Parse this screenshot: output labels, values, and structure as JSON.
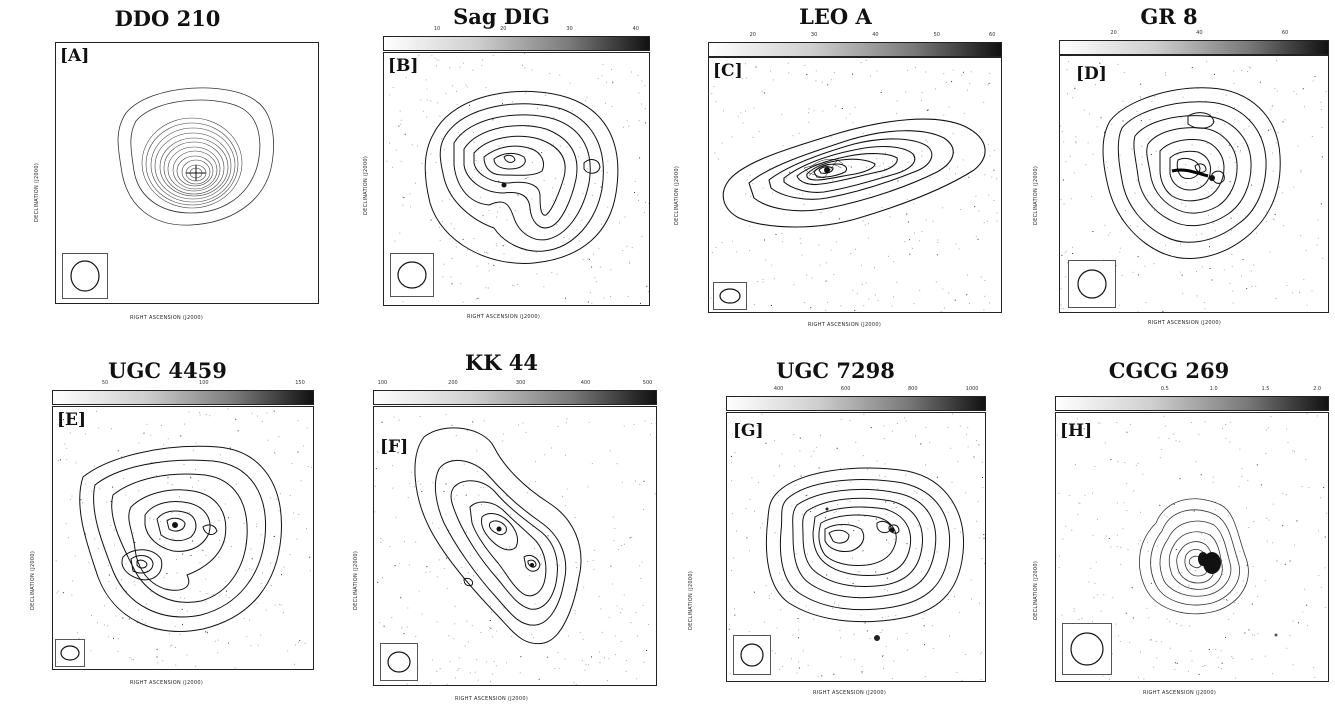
{
  "panels": [
    {
      "title": "DDO 210",
      "label": "[A]",
      "xlabel": "RIGHT ASCENSION (J2000)",
      "ylabel": "DECLINATION (J2000)",
      "colorbar": false,
      "colorbar_ticks": []
    },
    {
      "title": "Sag DIG",
      "label": "[B]",
      "xlabel": "RIGHT ASCENSION (J2000)",
      "ylabel": "DECLINATION (J2000)",
      "colorbar": true,
      "colorbar_ticks": [
        "10",
        "20",
        "30",
        "40"
      ]
    },
    {
      "title": "LEO A",
      "label": "[C]",
      "xlabel": "RIGHT ASCENSION (J2000)",
      "ylabel": "DECLINATION (J2000)",
      "colorbar": true,
      "colorbar_ticks": [
        "20",
        "30",
        "40",
        "50",
        "60"
      ]
    },
    {
      "title": "GR 8",
      "label": "[D]",
      "xlabel": "RIGHT ASCENSION (J2000)",
      "ylabel": "DECLINATION (J2000)",
      "colorbar": true,
      "colorbar_ticks": [
        "20",
        "40",
        "60"
      ]
    },
    {
      "title": "UGC 4459",
      "label": "[E]",
      "xlabel": "RIGHT ASCENSION (J2000)",
      "ylabel": "DECLINATION (J2000)",
      "colorbar": true,
      "colorbar_ticks": [
        "50",
        "100",
        "150"
      ]
    },
    {
      "title": "KK 44",
      "label": "[F]",
      "xlabel": "RIGHT ASCENSION (J2000)",
      "ylabel": "DECLINATION (J2000)",
      "colorbar": true,
      "colorbar_ticks": [
        "100",
        "200",
        "300",
        "400",
        "500"
      ]
    },
    {
      "title": "UGC 7298",
      "label": "[G]",
      "xlabel": "RIGHT ASCENSION (J2000)",
      "ylabel": "DECLINATION (J2000)",
      "colorbar": true,
      "colorbar_ticks": [
        "400",
        "600",
        "800",
        "1000"
      ]
    },
    {
      "title": "CGCG 269",
      "label": "[H]",
      "xlabel": "RIGHT ASCENSION (J2000)",
      "ylabel": "DECLINATION (J2000)",
      "colorbar": true,
      "colorbar_ticks": [
        "0.5",
        "1.0",
        "1.5",
        "2.0"
      ]
    }
  ]
}
